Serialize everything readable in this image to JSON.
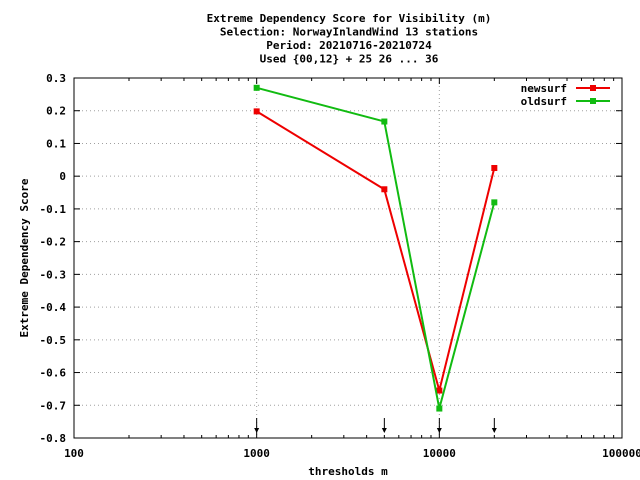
{
  "chart_data": {
    "type": "line",
    "title_lines": [
      "Extreme Dependency Score  for Visibility (m)",
      "Selection: NorwayInlandWind     13 stations",
      "Period: 20210716-20210724",
      "Used {00,12} + 25 26 ... 36"
    ],
    "xlabel": "thresholds m",
    "ylabel": "Extreme Dependency Score",
    "x_scale": "log",
    "xlim": [
      100,
      100000
    ],
    "ylim": [
      -0.8,
      0.3
    ],
    "x_ticks": [
      100,
      1000,
      10000,
      100000
    ],
    "x_tick_labels": [
      "100",
      "1000",
      "10000",
      "100000"
    ],
    "y_ticks": [
      0.3,
      0.2,
      0.1,
      0,
      -0.1,
      -0.2,
      -0.3,
      -0.4,
      -0.5,
      -0.6,
      -0.7,
      -0.8
    ],
    "y_tick_labels": [
      "0.3",
      "0.2",
      "0.1",
      "0",
      "-0.1",
      "-0.2",
      "-0.3",
      "-0.4",
      "-0.5",
      "-0.6",
      "-0.7",
      "-0.8"
    ],
    "grid": true,
    "legend_position": "top-right",
    "threshold_markers_x": [
      1000,
      5000,
      10000,
      20000
    ],
    "series": [
      {
        "name": "newsurf",
        "color": "#ee0000",
        "x": [
          1000,
          5000,
          10000,
          20000
        ],
        "y": [
          0.198,
          -0.04,
          -0.655,
          0.025
        ]
      },
      {
        "name": "oldsurf",
        "color": "#11bb11",
        "x": [
          1000,
          5000,
          10000,
          20000
        ],
        "y": [
          0.27,
          0.167,
          -0.71,
          -0.08
        ]
      }
    ]
  }
}
